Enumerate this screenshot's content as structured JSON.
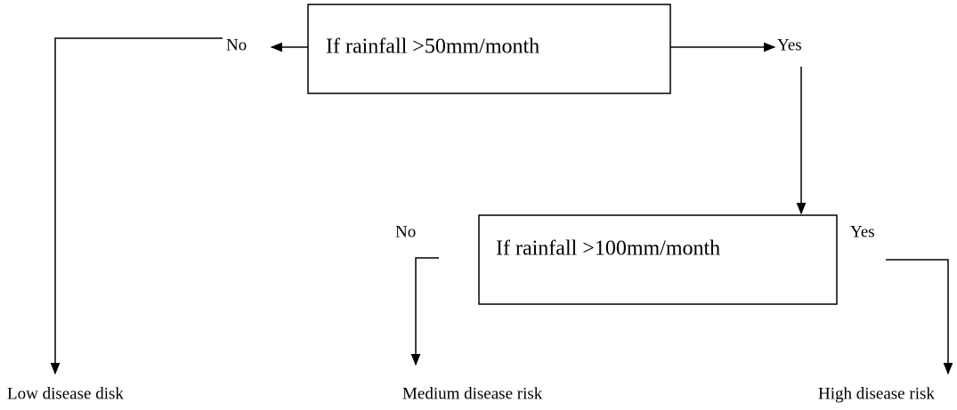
{
  "decisions": [
    {
      "label": "If rainfall >50mm/month",
      "no": "No",
      "yes": "Yes"
    },
    {
      "label": "If rainfall >100mm/month",
      "no": "No",
      "yes": "Yes"
    }
  ],
  "outcomes": [
    "Low disease disk",
    "Medium disease risk",
    "High disease risk"
  ]
}
